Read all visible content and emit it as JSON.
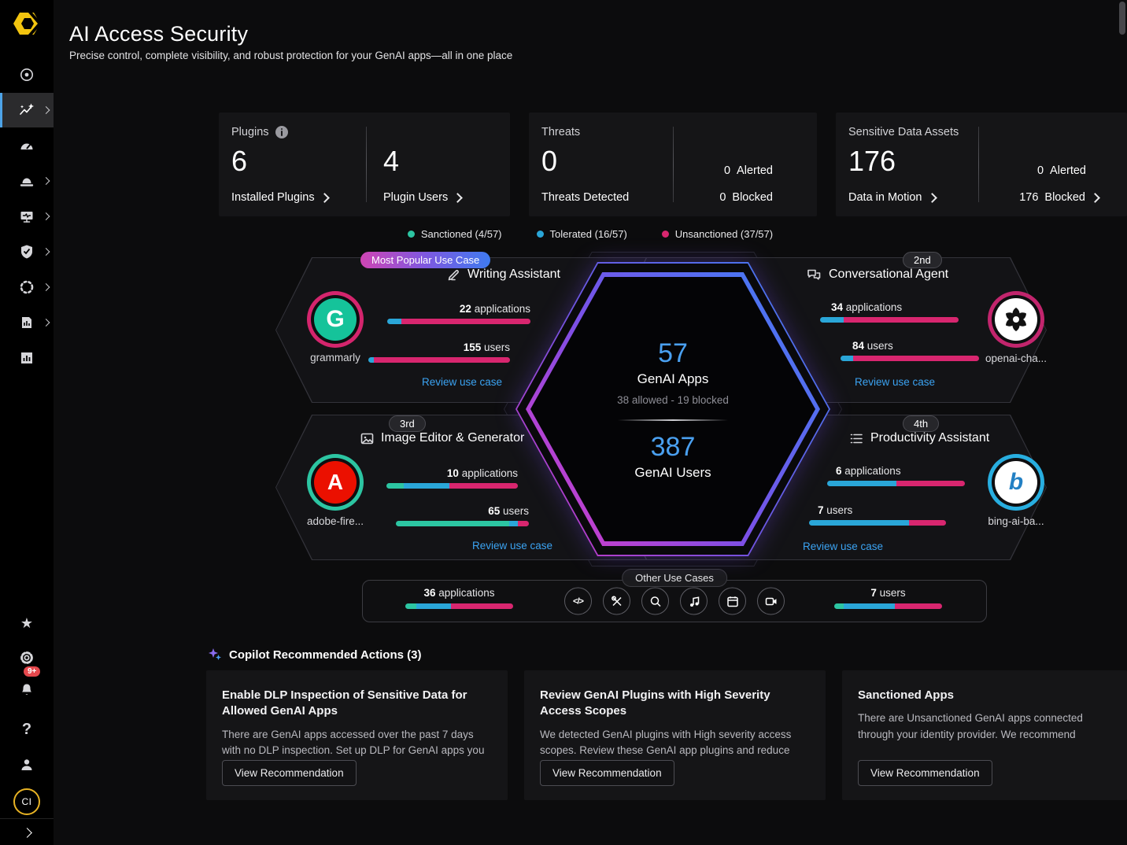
{
  "header": {
    "title": "AI Access Security",
    "subtitle": "Precise control, complete visibility, and robust protection for your GenAI apps—all in one place"
  },
  "sidebar": {
    "logo_name": "palo-alto-networks-logo",
    "nav_icons": [
      "radar",
      "ai-access-security",
      "dashboard-gauge",
      "alerts",
      "devices",
      "posture-shield",
      "discovery",
      "reports",
      "analytics"
    ],
    "bottom_icons": [
      "favorites-star",
      "settings-gear",
      "notifications-bell",
      "help",
      "user"
    ],
    "notification_badge": "9+",
    "avatar_initials": "CI"
  },
  "icons_glyphs": {
    "star": "★",
    "help": "?",
    "code": "</>"
  },
  "colors": {
    "s": "#2cc5a2",
    "t": "#2aa6d8",
    "u": "#d8266f",
    "link": "#3ba3f2",
    "value_blue": "#4aa0f0"
  },
  "stats": {
    "plugins": {
      "title": "Plugins",
      "primary_value": "6",
      "primary_label": "Installed Plugins",
      "secondary_value": "4",
      "secondary_label": "Plugin Users"
    },
    "threats": {
      "title": "Threats",
      "primary_value": "0",
      "primary_label": "Threats Detected",
      "alerted_value": "0",
      "alerted_label": "Alerted",
      "blocked_value": "0",
      "blocked_label": "Blocked"
    },
    "sensitive_data": {
      "title": "Sensitive Data Assets",
      "primary_value": "176",
      "primary_label": "Data in Motion",
      "alerted_value": "0",
      "alerted_label": "Alerted",
      "blocked_value": "176",
      "blocked_label": "Blocked"
    }
  },
  "legend": {
    "items": [
      {
        "label": "Sanctioned (4/57)",
        "color": "#2cc5a2"
      },
      {
        "label": "Tolerated (16/57)",
        "color": "#2aa6d8"
      },
      {
        "label": "Unsanctioned (37/57)",
        "color": "#d8266f"
      }
    ]
  },
  "hexagon": {
    "apps_value": "57",
    "apps_label": "GenAI Apps",
    "apps_detail": "38 allowed - 19 blocked",
    "users_value": "387",
    "users_label": "GenAI Users"
  },
  "use_cases": [
    {
      "rank_badge": "Most Popular Use Case",
      "title": "Writing Assistant",
      "icon": "pencil",
      "app_name": "grammarly",
      "apps_value": "22",
      "apps_unit": " applications",
      "users_value": "155",
      "users_unit": " users",
      "review_label": "Review use case",
      "apps_bar": [
        {
          "k": "t",
          "pct": 10
        },
        {
          "k": "u",
          "pct": 90
        }
      ],
      "users_bar": [
        {
          "k": "t",
          "pct": 4
        },
        {
          "k": "u",
          "pct": 96
        }
      ]
    },
    {
      "rank_badge": "2nd",
      "title": "Conversational Agent",
      "icon": "chat",
      "app_name": "openai-cha...",
      "apps_value": "34",
      "apps_unit": " applications",
      "users_value": "84",
      "users_unit": " users",
      "review_label": "Review use case",
      "apps_bar": [
        {
          "k": "t",
          "pct": 17
        },
        {
          "k": "u",
          "pct": 83
        }
      ],
      "users_bar": [
        {
          "k": "t",
          "pct": 9
        },
        {
          "k": "u",
          "pct": 91
        }
      ]
    },
    {
      "rank_badge": "3rd",
      "title": "Image Editor & Generator",
      "icon": "image",
      "app_name": "adobe-fire...",
      "apps_value": "10",
      "apps_unit": " applications",
      "users_value": "65",
      "users_unit": " users",
      "review_label": "Review use case",
      "apps_bar": [
        {
          "k": "s",
          "pct": 13
        },
        {
          "k": "t",
          "pct": 35
        },
        {
          "k": "u",
          "pct": 52
        }
      ],
      "users_bar": [
        {
          "k": "s",
          "pct": 85
        },
        {
          "k": "t",
          "pct": 7
        },
        {
          "k": "u",
          "pct": 8
        }
      ]
    },
    {
      "rank_badge": "4th",
      "title": "Productivity Assistant",
      "icon": "tasks",
      "app_name": "bing-ai-ba...",
      "apps_value": "6",
      "apps_unit": " applications",
      "users_value": "7",
      "users_unit": " users",
      "review_label": "Review use case",
      "apps_bar": [
        {
          "k": "t",
          "pct": 50
        },
        {
          "k": "u",
          "pct": 50
        }
      ],
      "users_bar": [
        {
          "k": "t",
          "pct": 73
        },
        {
          "k": "u",
          "pct": 27
        }
      ]
    }
  ],
  "other_use_cases": {
    "badge": "Other Use Cases",
    "apps_value": "36",
    "apps_unit": " applications",
    "users_value": "7",
    "users_unit": " users",
    "icons": [
      "code",
      "tools",
      "search",
      "music",
      "calendar",
      "video"
    ],
    "apps_bar": [
      {
        "k": "s",
        "pct": 10
      },
      {
        "k": "t",
        "pct": 32
      },
      {
        "k": "u",
        "pct": 58
      }
    ],
    "users_bar": [
      {
        "k": "s",
        "pct": 9
      },
      {
        "k": "t",
        "pct": 47
      },
      {
        "k": "u",
        "pct": 44
      }
    ]
  },
  "copilot": {
    "heading": "Copilot Recommended Actions (3)",
    "cards": [
      {
        "title": "Enable DLP Inspection of Sensitive Data for Allowed GenAI Apps",
        "body": "There are GenAI apps accessed over the past 7 days with no DLP inspection. Set up DLP for GenAI apps you allow",
        "button": "View Recommendation"
      },
      {
        "title": "Review GenAI Plugins with High Severity Access Scopes",
        "body": "We detected GenAI plugins with High severity access scopes. Review these GenAI app plugins and reduce access",
        "button": "View Recommendation"
      },
      {
        "title": "Sanctioned Apps",
        "body": "There are Unsanctioned GenAI apps connected through your identity provider. We recommend Reclassifying these",
        "button": "View Recommendation"
      }
    ]
  }
}
